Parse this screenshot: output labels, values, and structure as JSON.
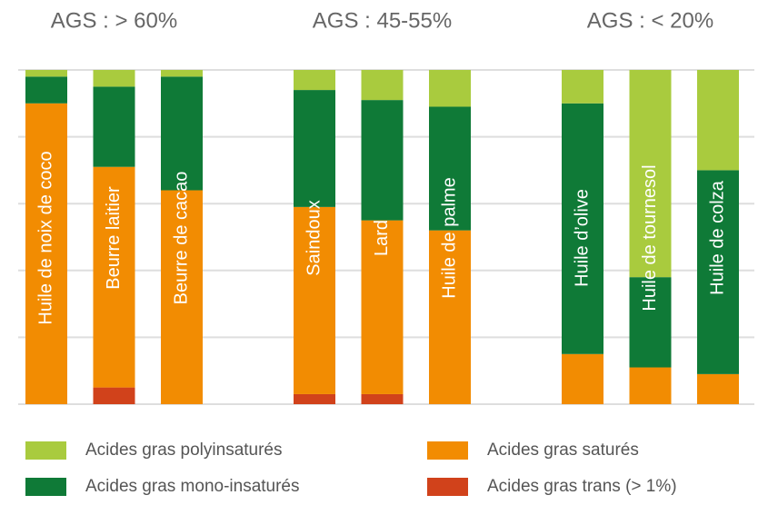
{
  "chart_data": {
    "type": "bar",
    "stacked": true,
    "groups": [
      "AGS : > 60%",
      "AGS : 45-55%",
      "AGS : < 20%"
    ],
    "categories": [
      "Huile de noix de coco",
      "Beurre laitier",
      "Beurre de cacao",
      "Saindoux",
      "Lard",
      "Huile de palme",
      "Huile d’olive",
      "Huile de tournesol",
      "Huile de colza"
    ],
    "series": [
      {
        "name": "Acides gras polyinsaturés",
        "color": "#a9cb3e",
        "values": [
          2,
          5,
          2,
          6,
          9,
          11,
          10,
          62,
          30
        ]
      },
      {
        "name": "Acides gras mono-insaturés",
        "color": "#0f7a37",
        "values": [
          8,
          24,
          34,
          35,
          36,
          37,
          75,
          27,
          61
        ]
      },
      {
        "name": "Acides gras saturés",
        "color": "#f28c02",
        "values": [
          90,
          66,
          64,
          56,
          52,
          52,
          15,
          11,
          9
        ]
      },
      {
        "name": "Acides gras trans (> 1%)",
        "color": "#d1421b",
        "values": [
          0,
          5,
          0,
          3,
          3,
          0,
          0,
          0,
          0
        ]
      }
    ],
    "ylim": [
      0,
      100
    ],
    "yticks": [
      0,
      20,
      40,
      60,
      80,
      100
    ],
    "grid": true
  }
}
